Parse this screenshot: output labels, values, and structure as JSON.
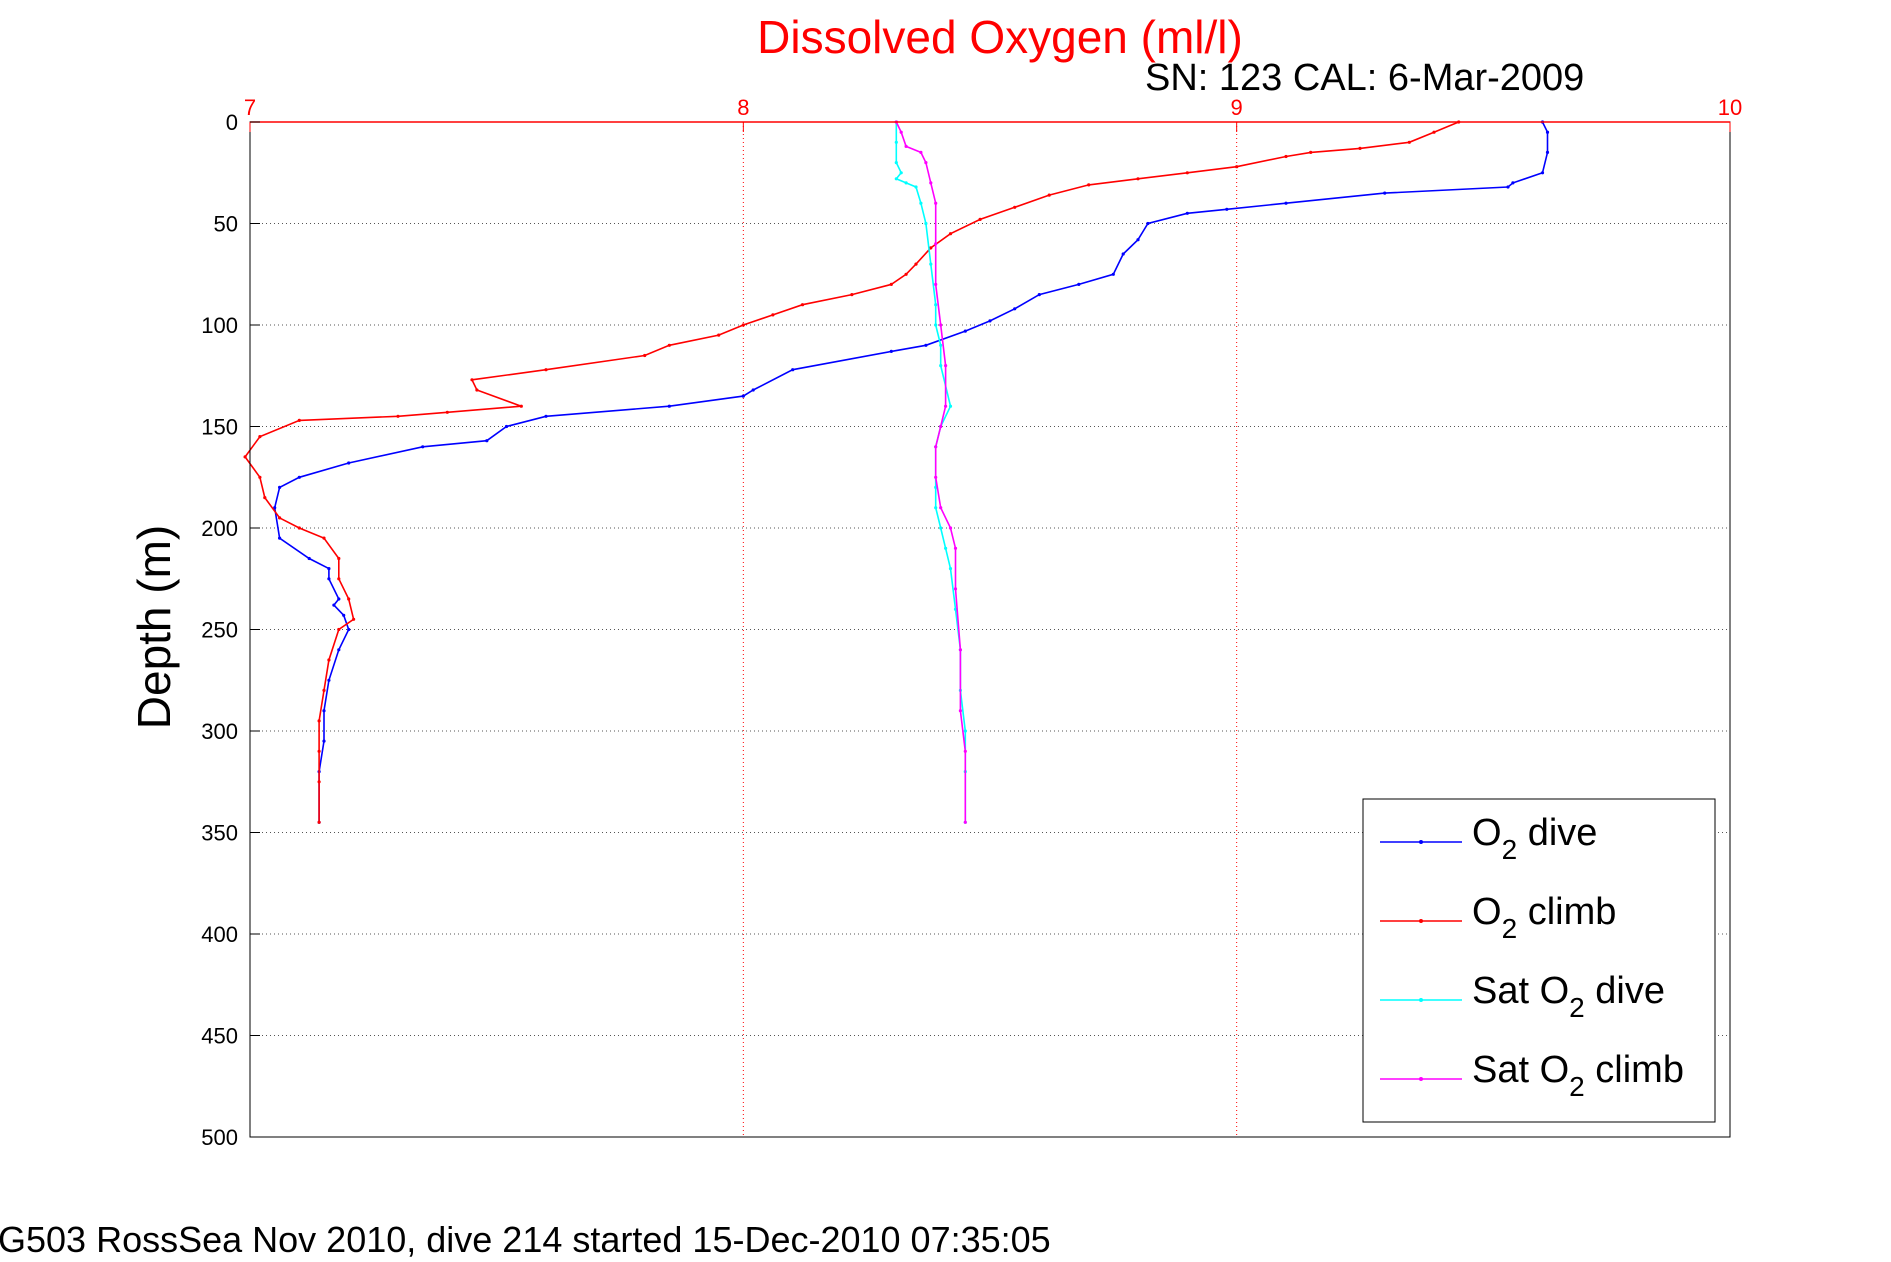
{
  "title": "Dissolved Oxygen (ml/l)",
  "subtitle": "SN: 123  CAL: 6-Mar-2009",
  "footer": "G503 RossSea Nov 2010, dive 214 started 15-Dec-2010 07:35:05",
  "colors": {
    "title": "#ff0000",
    "x_axis": "#ff0000",
    "o2_dive": "#0000ff",
    "o2_climb": "#ff0000",
    "sat_dive": "#00ffff",
    "sat_climb": "#ff00ff"
  },
  "chart_data": {
    "type": "line",
    "title": "Dissolved Oxygen (ml/l)",
    "xlabel": "",
    "ylabel": "Depth (m)",
    "xlim": [
      7,
      10
    ],
    "ylim": [
      0,
      500
    ],
    "y_reversed": true,
    "x_axis_position": "top",
    "x_ticks": [
      "7",
      "8",
      "9",
      "10"
    ],
    "y_ticks": [
      "0",
      "50",
      "100",
      "150",
      "200",
      "250",
      "300",
      "350",
      "400",
      "450",
      "500"
    ],
    "grid": true,
    "legend_position": "bottom-right",
    "legend": [
      {
        "pre": "O",
        "sub": "2",
        "post": " dive",
        "series": "o2_dive"
      },
      {
        "pre": "O",
        "sub": "2",
        "post": " climb",
        "series": "o2_climb"
      },
      {
        "pre": "Sat O",
        "sub": "2",
        "post": " dive",
        "series": "sat_dive"
      },
      {
        "pre": "Sat O",
        "sub": "2",
        "post": " climb",
        "series": "sat_climb"
      }
    ],
    "series": [
      {
        "key": "o2_dive",
        "points": [
          [
            9.62,
            0
          ],
          [
            9.63,
            5
          ],
          [
            9.63,
            15
          ],
          [
            9.62,
            25
          ],
          [
            9.56,
            30
          ],
          [
            9.55,
            32
          ],
          [
            9.3,
            35
          ],
          [
            9.1,
            40
          ],
          [
            8.98,
            43
          ],
          [
            8.9,
            45
          ],
          [
            8.82,
            50
          ],
          [
            8.8,
            58
          ],
          [
            8.77,
            65
          ],
          [
            8.75,
            75
          ],
          [
            8.68,
            80
          ],
          [
            8.6,
            85
          ],
          [
            8.55,
            92
          ],
          [
            8.5,
            98
          ],
          [
            8.45,
            103
          ],
          [
            8.37,
            110
          ],
          [
            8.3,
            113
          ],
          [
            8.1,
            122
          ],
          [
            8.02,
            132
          ],
          [
            8.0,
            135
          ],
          [
            7.85,
            140
          ],
          [
            7.6,
            145
          ],
          [
            7.52,
            150
          ],
          [
            7.48,
            157
          ],
          [
            7.35,
            160
          ],
          [
            7.2,
            168
          ],
          [
            7.1,
            175
          ],
          [
            7.06,
            180
          ],
          [
            7.05,
            190
          ],
          [
            7.06,
            205
          ],
          [
            7.12,
            215
          ],
          [
            7.16,
            220
          ],
          [
            7.16,
            225
          ],
          [
            7.18,
            235
          ],
          [
            7.17,
            238
          ],
          [
            7.19,
            243
          ],
          [
            7.2,
            250
          ],
          [
            7.18,
            260
          ],
          [
            7.16,
            275
          ],
          [
            7.15,
            290
          ],
          [
            7.15,
            305
          ],
          [
            7.14,
            320
          ],
          [
            7.14,
            345
          ]
        ]
      },
      {
        "key": "o2_climb",
        "points": [
          [
            9.45,
            0
          ],
          [
            9.4,
            5
          ],
          [
            9.35,
            10
          ],
          [
            9.25,
            13
          ],
          [
            9.15,
            15
          ],
          [
            9.1,
            17
          ],
          [
            9.0,
            22
          ],
          [
            8.9,
            25
          ],
          [
            8.8,
            28
          ],
          [
            8.7,
            31
          ],
          [
            8.62,
            36
          ],
          [
            8.55,
            42
          ],
          [
            8.48,
            48
          ],
          [
            8.42,
            55
          ],
          [
            8.38,
            62
          ],
          [
            8.35,
            70
          ],
          [
            8.33,
            75
          ],
          [
            8.3,
            80
          ],
          [
            8.22,
            85
          ],
          [
            8.12,
            90
          ],
          [
            8.06,
            95
          ],
          [
            8.0,
            100
          ],
          [
            7.95,
            105
          ],
          [
            7.85,
            110
          ],
          [
            7.8,
            115
          ],
          [
            7.6,
            122
          ],
          [
            7.45,
            127
          ],
          [
            7.46,
            132
          ],
          [
            7.55,
            140
          ],
          [
            7.4,
            143
          ],
          [
            7.3,
            145
          ],
          [
            7.1,
            147
          ],
          [
            7.02,
            155
          ],
          [
            6.99,
            165
          ],
          [
            7.02,
            175
          ],
          [
            7.03,
            185
          ],
          [
            7.06,
            195
          ],
          [
            7.1,
            200
          ],
          [
            7.15,
            205
          ],
          [
            7.18,
            215
          ],
          [
            7.18,
            225
          ],
          [
            7.2,
            235
          ],
          [
            7.21,
            245
          ],
          [
            7.18,
            250
          ],
          [
            7.16,
            265
          ],
          [
            7.15,
            280
          ],
          [
            7.14,
            295
          ],
          [
            7.14,
            310
          ],
          [
            7.14,
            325
          ],
          [
            7.14,
            345
          ]
        ]
      },
      {
        "key": "sat_dive",
        "points": [
          [
            8.31,
            0
          ],
          [
            8.31,
            10
          ],
          [
            8.31,
            20
          ],
          [
            8.32,
            25
          ],
          [
            8.31,
            28
          ],
          [
            8.33,
            30
          ],
          [
            8.35,
            32
          ],
          [
            8.36,
            40
          ],
          [
            8.37,
            50
          ],
          [
            8.38,
            70
          ],
          [
            8.39,
            90
          ],
          [
            8.39,
            100
          ],
          [
            8.4,
            110
          ],
          [
            8.4,
            120
          ],
          [
            8.42,
            140
          ],
          [
            8.4,
            150
          ],
          [
            8.39,
            160
          ],
          [
            8.39,
            180
          ],
          [
            8.39,
            190
          ],
          [
            8.4,
            200
          ],
          [
            8.41,
            210
          ],
          [
            8.42,
            220
          ],
          [
            8.43,
            240
          ],
          [
            8.44,
            260
          ],
          [
            8.44,
            280
          ],
          [
            8.45,
            300
          ],
          [
            8.45,
            320
          ],
          [
            8.45,
            345
          ]
        ]
      },
      {
        "key": "sat_climb",
        "points": [
          [
            8.31,
            0
          ],
          [
            8.32,
            5
          ],
          [
            8.33,
            12
          ],
          [
            8.36,
            15
          ],
          [
            8.37,
            20
          ],
          [
            8.38,
            30
          ],
          [
            8.39,
            40
          ],
          [
            8.39,
            60
          ],
          [
            8.39,
            80
          ],
          [
            8.4,
            100
          ],
          [
            8.41,
            120
          ],
          [
            8.41,
            140
          ],
          [
            8.4,
            150
          ],
          [
            8.39,
            160
          ],
          [
            8.39,
            175
          ],
          [
            8.4,
            190
          ],
          [
            8.42,
            200
          ],
          [
            8.43,
            210
          ],
          [
            8.43,
            230
          ],
          [
            8.44,
            260
          ],
          [
            8.44,
            290
          ],
          [
            8.45,
            310
          ],
          [
            8.45,
            345
          ]
        ]
      }
    ]
  }
}
